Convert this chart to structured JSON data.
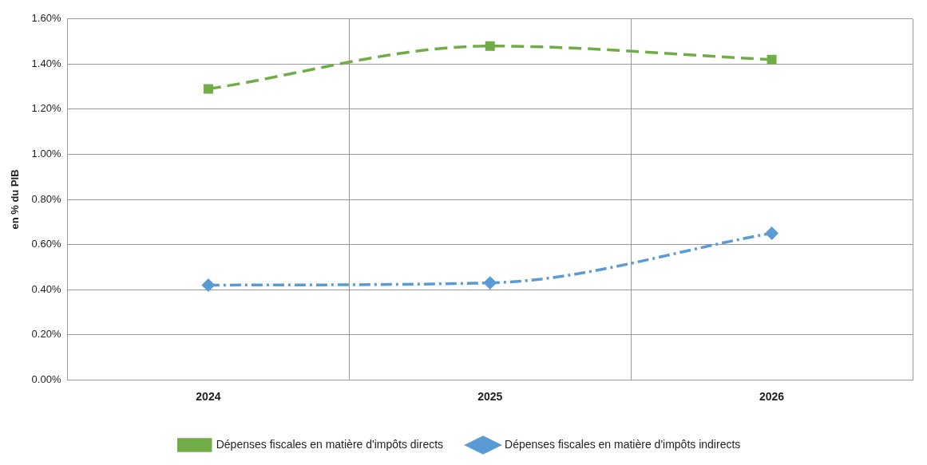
{
  "chart_data": {
    "type": "line",
    "ylabel": "en % du PIB",
    "categories": [
      "2024",
      "2025",
      "2026"
    ],
    "series": [
      {
        "name": "Dépenses fiscales en matière d'impôts directs",
        "color": "#70ad47",
        "values": [
          1.29,
          1.48,
          1.42
        ],
        "marker": "square",
        "line_style": "dashed"
      },
      {
        "name": "Dépenses fiscales en matière d'impôts indirects",
        "color": "#5b9bd5",
        "values": [
          0.42,
          0.43,
          0.65
        ],
        "marker": "diamond",
        "line_style": "dotted"
      }
    ],
    "ylim": [
      0,
      1.6
    ],
    "yticks": [
      {
        "value": 0,
        "label": "0.00%"
      },
      {
        "value": 0.2,
        "label": "0.20%"
      },
      {
        "value": 0.4,
        "label": "0.40%"
      },
      {
        "value": 0.6,
        "label": "0.60%"
      },
      {
        "value": 0.8,
        "label": "0.80%"
      },
      {
        "value": 1,
        "label": "1.00%"
      },
      {
        "value": 1.2,
        "label": "1.20%"
      },
      {
        "value": 1.4,
        "label": "1.40%"
      },
      {
        "value": 1.6,
        "label": "1.60%"
      }
    ],
    "grid": true,
    "legend": "bottom"
  }
}
